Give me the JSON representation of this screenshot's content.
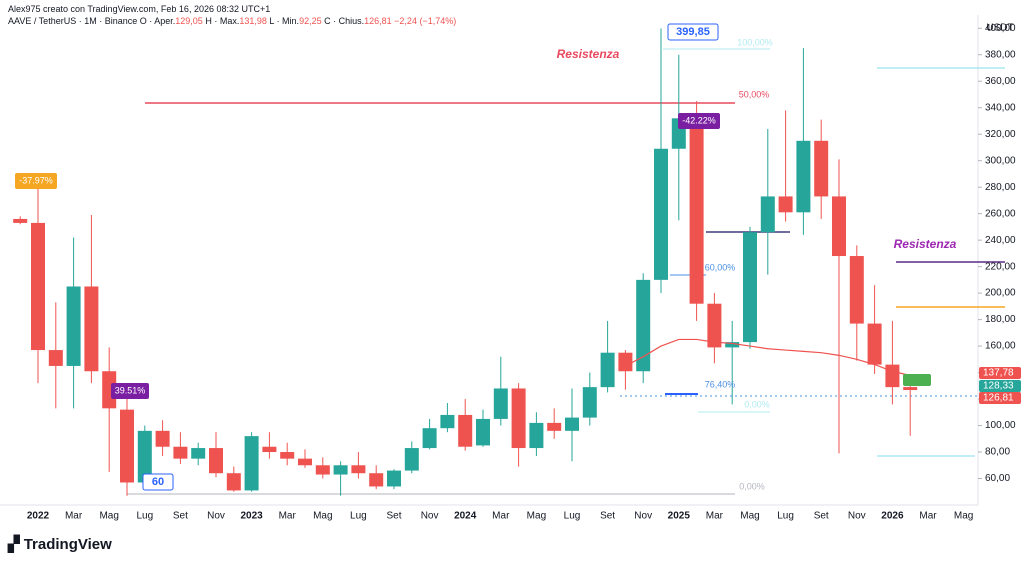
{
  "header": {
    "credit": "Alex975 creato con TradingView.com, Feb 16, 2026 08:32 UTC+1",
    "symbol": "AAVE / TetherUS · 1M · Binance",
    "fields": [
      {
        "key": "O · Aper.",
        "value": "129,05"
      },
      {
        "key": "H · Max.",
        "value": "131,98"
      },
      {
        "key": "L · Min.",
        "value": "92,25"
      },
      {
        "key": "C · Chius.",
        "value": "126,81"
      }
    ],
    "change": "−2,24 (−1,74%)"
  },
  "footer": {
    "logo": "TradingView"
  },
  "chart_data": {
    "type": "candlestick",
    "y_axis_label": "USDT",
    "up_color": "#26a69a",
    "down_color": "#ef5350",
    "categories": [
      null,
      "2022",
      null,
      "Mar",
      null,
      "Mag",
      null,
      "Lug",
      null,
      "Set",
      null,
      "Nov",
      null,
      "2023",
      null,
      "Mar",
      null,
      "Mag",
      null,
      "Lug",
      null,
      "Set",
      null,
      "Nov",
      null,
      "2024",
      null,
      "Mar",
      null,
      "Mag",
      null,
      "Lug",
      null,
      "Set",
      null,
      "Nov",
      null,
      "2025",
      null,
      "Mar",
      null,
      "Mag",
      null,
      "Lug",
      null,
      "Set",
      null,
      "Nov",
      null,
      "2026",
      null,
      "Mar",
      null,
      "Mag"
    ],
    "open": [
      256,
      253,
      157,
      145,
      205,
      141,
      112,
      57,
      96,
      84,
      75,
      83,
      64,
      51,
      84,
      80,
      75,
      70,
      63,
      70,
      64,
      54,
      66,
      83,
      98,
      108,
      85,
      105,
      128,
      83,
      102,
      96,
      106,
      129,
      155,
      141,
      210,
      309,
      332,
      192,
      159,
      163,
      246,
      273,
      261,
      315,
      273,
      228,
      177,
      146,
      129.05,
      null,
      null,
      null
    ],
    "high": [
      258,
      285,
      193,
      242,
      259,
      159,
      124,
      100,
      104,
      95,
      87,
      95,
      69,
      95,
      95,
      87,
      82,
      76,
      73,
      80,
      70,
      67,
      88,
      105,
      117,
      120,
      112,
      152,
      132,
      110,
      113,
      128,
      140,
      179,
      157,
      215,
      399.85,
      380,
      345,
      200,
      179,
      250,
      324,
      338,
      385,
      331,
      301,
      236,
      206,
      179,
      131.98,
      null,
      null,
      null
    ],
    "low": [
      252,
      132,
      113,
      113,
      132,
      65,
      47,
      55,
      77,
      71,
      70,
      61,
      50,
      50,
      75,
      70,
      68,
      60,
      47,
      60,
      52,
      52,
      64,
      82,
      95,
      81,
      84,
      100,
      69,
      77,
      90,
      73,
      100,
      125,
      127,
      132,
      200,
      255,
      179,
      147,
      116,
      158,
      214,
      254,
      244,
      256,
      79,
      149,
      139,
      116,
      92.25,
      null,
      null,
      null
    ],
    "close": [
      253,
      157,
      145,
      205,
      141,
      113,
      57,
      96,
      84,
      75,
      83,
      64,
      51,
      92,
      80,
      75,
      70,
      63,
      70,
      64,
      54,
      66,
      83,
      98,
      108,
      84,
      105,
      128,
      83,
      102,
      96,
      106,
      129,
      155,
      141,
      210,
      309,
      332,
      192,
      159,
      163,
      246,
      273,
      261,
      315,
      273,
      228,
      177,
      146,
      129,
      126.81,
      null,
      null,
      null
    ],
    "moving_average": {
      "color": "#ef5350",
      "values": [
        null,
        null,
        null,
        null,
        null,
        null,
        null,
        null,
        null,
        null,
        null,
        null,
        null,
        null,
        null,
        null,
        null,
        null,
        null,
        null,
        null,
        null,
        null,
        null,
        null,
        null,
        null,
        null,
        null,
        null,
        null,
        null,
        null,
        null,
        145,
        152,
        160,
        165,
        165,
        163,
        162,
        160,
        158,
        157,
        156,
        155,
        153,
        150,
        146,
        141,
        137.78,
        null,
        null,
        null
      ]
    },
    "ylim": [
      40,
      410
    ],
    "yticks": [
      {
        "value": 60,
        "label": "60,00"
      },
      {
        "value": 80,
        "label": "80,00"
      },
      {
        "value": 100,
        "label": "100,00"
      },
      {
        "value": 120,
        "label": "120,00"
      },
      {
        "value": 140,
        "label": "140,00"
      },
      {
        "value": 160,
        "label": "160,00"
      },
      {
        "value": 180,
        "label": "180,00"
      },
      {
        "value": 200,
        "label": "200,00"
      },
      {
        "value": 220,
        "label": "220,00"
      },
      {
        "value": 240,
        "label": "240,00"
      },
      {
        "value": 260,
        "label": "260,00"
      },
      {
        "value": 280,
        "label": "280,00"
      },
      {
        "value": 300,
        "label": "300,00"
      },
      {
        "value": 320,
        "label": "320,00"
      },
      {
        "value": 340,
        "label": "340,00"
      },
      {
        "value": 360,
        "label": "360,00"
      },
      {
        "value": 380,
        "label": "380,00"
      },
      {
        "value": 400,
        "label": "400,00"
      }
    ],
    "price_markers": [
      {
        "value": 137.78,
        "label": "137,78",
        "color": "#ef5350"
      },
      {
        "value": 128.33,
        "label": "128,33",
        "color": "#26a69a"
      },
      {
        "value": 126.81,
        "label": "126,81",
        "color": "#ef5350"
      }
    ],
    "annotations": [
      "Resistenza",
      "Resistenza",
      "-37.97%",
      "39.51%",
      "-42.22%",
      "399,85",
      "60"
    ],
    "fib_labels": [
      "100,00%",
      "50,00%",
      "60,00%",
      "76,40%",
      "0,00%",
      "0,00%"
    ]
  }
}
